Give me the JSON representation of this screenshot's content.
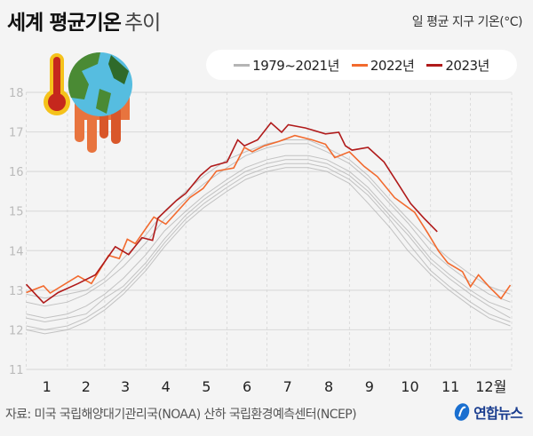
{
  "header": {
    "title": "세계 평균기온",
    "title_suffix": "추이",
    "unit": "일 평균 지구 기온(°C)"
  },
  "footer": {
    "source": "자료: 미국 국립해양대기관리국(NOAA) 산하 국립환경예측센터(NCEP)",
    "logo_text": "연합뉴스"
  },
  "colors": {
    "gray": "#b5b5b5",
    "y2022": "#f26a2e",
    "y2023": "#b01a1a",
    "logo": "#1a6fd0"
  },
  "chart_data": {
    "type": "line",
    "ylim": [
      11,
      18
    ],
    "yticks": [
      11,
      12,
      13,
      14,
      15,
      16,
      17,
      18
    ],
    "xticks": [
      "1",
      "2",
      "3",
      "4",
      "5",
      "6",
      "7",
      "8",
      "9",
      "10",
      "11",
      "12월"
    ],
    "grid": true,
    "legend_placement": "top-right",
    "legend": [
      "1979~2021년",
      "2022년",
      "2023년"
    ],
    "gray_x": [
      "01-01",
      "01-15",
      "02-01",
      "02-15",
      "03-01",
      "03-15",
      "04-01",
      "04-15",
      "05-01",
      "05-15",
      "06-01",
      "06-15",
      "07-01",
      "07-15",
      "08-01",
      "08-15",
      "09-01",
      "09-15",
      "10-01",
      "10-15",
      "11-01",
      "11-15",
      "12-01",
      "12-15",
      "12-31"
    ],
    "gray_series": [
      [
        12.4,
        12.3,
        12.4,
        12.6,
        12.9,
        13.3,
        13.9,
        14.5,
        15.0,
        15.4,
        15.8,
        16.1,
        16.3,
        16.4,
        16.4,
        16.3,
        16.0,
        15.6,
        15.0,
        14.5,
        13.8,
        13.4,
        13.0,
        12.7,
        12.5
      ],
      [
        12.1,
        12.0,
        12.1,
        12.3,
        12.6,
        13.0,
        13.6,
        14.2,
        14.8,
        15.2,
        15.6,
        15.9,
        16.1,
        16.2,
        16.2,
        16.1,
        15.8,
        15.4,
        14.8,
        14.2,
        13.5,
        13.1,
        12.7,
        12.4,
        12.2
      ],
      [
        12.7,
        12.6,
        12.7,
        12.9,
        13.2,
        13.6,
        14.2,
        14.8,
        15.3,
        15.7,
        16.1,
        16.4,
        16.6,
        16.7,
        16.7,
        16.5,
        16.2,
        15.8,
        15.2,
        14.7,
        14.0,
        13.6,
        13.2,
        12.9,
        12.7
      ],
      [
        12.9,
        12.8,
        12.9,
        13.0,
        13.3,
        13.8,
        14.4,
        15.0,
        15.5,
        15.9,
        16.3,
        16.5,
        16.7,
        16.8,
        16.8,
        16.6,
        16.3,
        15.9,
        15.3,
        14.8,
        14.2,
        13.8,
        13.4,
        13.1,
        12.9
      ],
      [
        12.3,
        12.2,
        12.3,
        12.4,
        12.8,
        13.1,
        13.7,
        14.3,
        14.9,
        15.3,
        15.7,
        16.0,
        16.2,
        16.3,
        16.3,
        16.2,
        15.9,
        15.5,
        14.9,
        14.4,
        13.7,
        13.3,
        12.9,
        12.6,
        12.3
      ],
      [
        12.0,
        11.9,
        12.0,
        12.2,
        12.5,
        12.9,
        13.5,
        14.1,
        14.7,
        15.1,
        15.5,
        15.8,
        16.0,
        16.1,
        16.1,
        16.0,
        15.7,
        15.2,
        14.6,
        14.0,
        13.4,
        13.0,
        12.6,
        12.3,
        12.1
      ]
    ],
    "series": [
      {
        "name": "2022년",
        "x": [
          "01-01",
          "01-14",
          "01-19",
          "02-09",
          "02-19",
          "03-04",
          "03-12",
          "03-18",
          "03-24",
          "04-07",
          "04-16",
          "05-04",
          "05-14",
          "05-24",
          "06-06",
          "06-14",
          "06-20",
          "06-29",
          "07-10",
          "07-22",
          "08-04",
          "08-14",
          "08-21",
          "09-01",
          "09-12",
          "09-22",
          "10-05",
          "10-20",
          "10-30",
          "11-07",
          "11-14",
          "11-25",
          "12-01",
          "12-07",
          "12-15",
          "12-24",
          "12-31"
        ],
        "values": [
          12.94,
          13.11,
          12.93,
          13.36,
          13.17,
          13.88,
          13.8,
          14.29,
          14.18,
          14.85,
          14.67,
          15.34,
          15.57,
          16.01,
          16.09,
          16.61,
          16.5,
          16.65,
          16.76,
          16.91,
          16.8,
          16.69,
          16.35,
          16.5,
          16.13,
          15.87,
          15.34,
          14.97,
          14.44,
          13.99,
          13.69,
          13.47,
          13.09,
          13.39,
          13.09,
          12.79,
          13.13
        ]
      },
      {
        "name": "2023년",
        "x": [
          "01-01",
          "01-14",
          "01-25",
          "02-09",
          "02-22",
          "03-09",
          "03-19",
          "03-29",
          "04-06",
          "04-10",
          "04-24",
          "05-01",
          "05-12",
          "05-20",
          "06-01",
          "06-09",
          "06-14",
          "06-24",
          "07-04",
          "07-12",
          "07-17",
          "07-30",
          "08-14",
          "08-24",
          "08-29",
          "09-03",
          "09-15",
          "09-27",
          "10-07",
          "10-17",
          "10-27",
          "11-06"
        ],
        "values": [
          13.15,
          12.68,
          12.94,
          13.17,
          13.39,
          14.1,
          13.9,
          14.33,
          14.26,
          14.82,
          15.27,
          15.45,
          15.9,
          16.13,
          16.24,
          16.8,
          16.65,
          16.8,
          17.23,
          16.99,
          17.18,
          17.1,
          16.95,
          16.99,
          16.65,
          16.54,
          16.61,
          16.24,
          15.72,
          15.19,
          14.82,
          14.48
        ]
      }
    ]
  }
}
